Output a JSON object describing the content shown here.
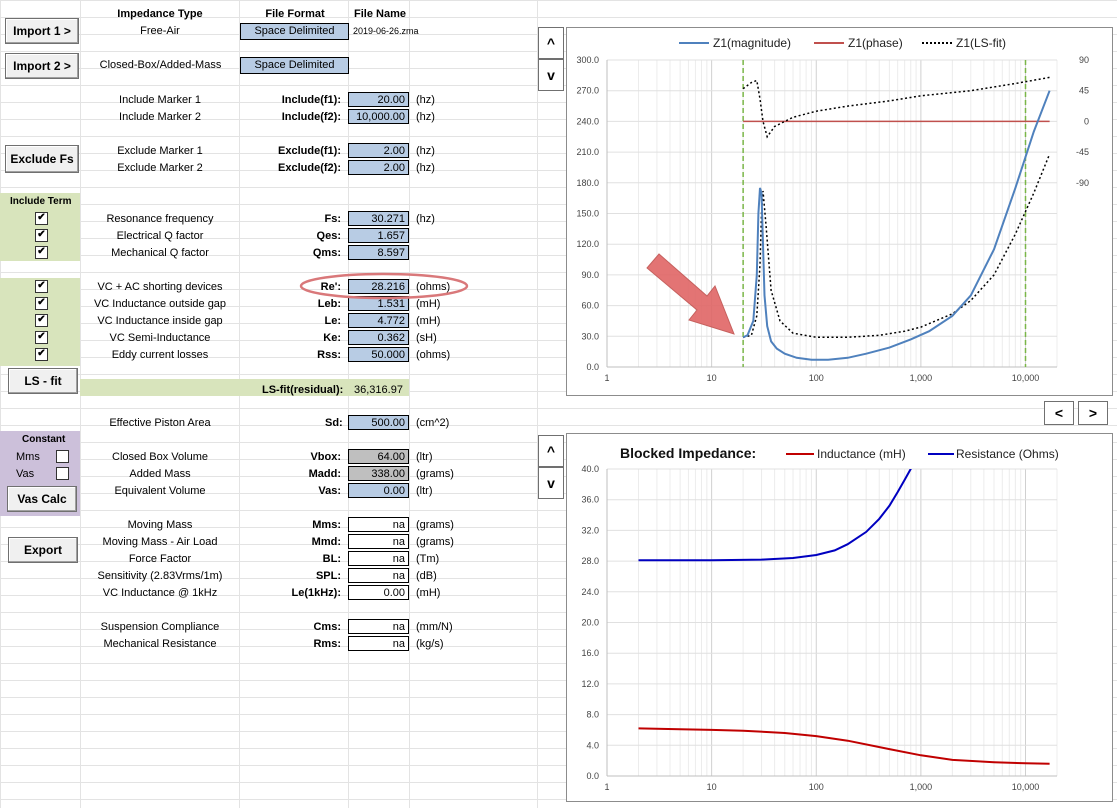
{
  "headers": {
    "impedance_type": "Impedance Type",
    "file_format": "File Format",
    "file_name": "File Name"
  },
  "buttons": {
    "import1": "Import 1 >",
    "import2": "Import 2 >",
    "exclude_fs": "Exclude Fs",
    "ls_fit": "LS - fit",
    "vas_calc": "Vas Calc",
    "export": "Export",
    "scroll_up": "^",
    "scroll_down": "v",
    "prev": "<",
    "next": ">"
  },
  "import1": {
    "type": "Free-Air",
    "format": "Space Delimited",
    "file": "2019-06-26.zma"
  },
  "import2": {
    "type": "Closed-Box/Added-Mass",
    "format": "Space Delimited"
  },
  "include_markers": [
    {
      "label": "Include Marker 1",
      "key": "Include(f1):",
      "value": "20.00",
      "unit": "(hz)"
    },
    {
      "label": "Include Marker 2",
      "key": "Include(f2):",
      "value": "10,000.00",
      "unit": "(hz)"
    }
  ],
  "exclude_markers": [
    {
      "label": "Exclude Marker 1",
      "key": "Exclude(f1):",
      "value": "2.00",
      "unit": "(hz)"
    },
    {
      "label": "Exclude Marker 2",
      "key": "Exclude(f2):",
      "value": "2.00",
      "unit": "(hz)"
    }
  ],
  "include_term_label": "Include Term",
  "params_a": [
    {
      "label": "Resonance frequency",
      "key": "Fs:",
      "value": "30.271",
      "unit": "(hz)",
      "checked": true
    },
    {
      "label": "Electrical Q factor",
      "key": "Qes:",
      "value": "1.657",
      "unit": "",
      "checked": true
    },
    {
      "label": "Mechanical Q factor",
      "key": "Qms:",
      "value": "8.597",
      "unit": "",
      "checked": true
    }
  ],
  "params_b": [
    {
      "label": "VC + AC shorting devices",
      "key": "Re':",
      "value": "28.216",
      "unit": "(ohms)",
      "checked": true
    },
    {
      "label": "VC Inductance outside gap",
      "key": "Leb:",
      "value": "1.531",
      "unit": "(mH)",
      "checked": true
    },
    {
      "label": "VC Inductance inside gap",
      "key": "Le:",
      "value": "4.772",
      "unit": "(mH)",
      "checked": true
    },
    {
      "label": "VC Semi-Inductance",
      "key": "Ke:",
      "value": "0.362",
      "unit": "(sH)",
      "checked": true
    },
    {
      "label": "Eddy current losses",
      "key": "Rss:",
      "value": "50.000",
      "unit": "(ohms)",
      "checked": true
    }
  ],
  "residual": {
    "key": "LS-fit(residual):",
    "value": "36,316.97"
  },
  "piston": {
    "label": "Effective Piston Area",
    "key": "Sd:",
    "value": "500.00",
    "unit": "(cm^2)"
  },
  "constant": {
    "title": "Constant",
    "mms": "Mms",
    "vas": "Vas"
  },
  "box_params": [
    {
      "label": "Closed Box Volume",
      "key": "Vbox:",
      "value": "64.00",
      "unit": "(ltr)",
      "style": "gray"
    },
    {
      "label": "Added Mass",
      "key": "Madd:",
      "value": "338.00",
      "unit": "(grams)",
      "style": "gray"
    },
    {
      "label": "Equivalent Volume",
      "key": "Vas:",
      "value": "0.00",
      "unit": "(ltr)",
      "style": "blue"
    }
  ],
  "derived_a": [
    {
      "label": "Moving Mass",
      "key": "Mms:",
      "value": "na",
      "unit": "(grams)"
    },
    {
      "label": "Moving Mass - Air Load",
      "key": "Mmd:",
      "value": "na",
      "unit": "(grams)"
    },
    {
      "label": "Force Factor",
      "key": "BL:",
      "value": "na",
      "unit": "(Tm)"
    },
    {
      "label": "Sensitivity (2.83Vrms/1m)",
      "key": "SPL:",
      "value": "na",
      "unit": "(dB)"
    },
    {
      "label": "VC Inductance @ 1kHz",
      "key": "Le(1kHz):",
      "value": "0.00",
      "unit": "(mH)"
    }
  ],
  "derived_b": [
    {
      "label": "Suspension Compliance",
      "key": "Cms:",
      "value": "na",
      "unit": "(mm/N)"
    },
    {
      "label": "Mechanical Resistance",
      "key": "Rms:",
      "value": "na",
      "unit": "(kg/s)"
    }
  ],
  "chart_data": [
    {
      "type": "line",
      "x_scale": "log",
      "xlim": [
        1,
        20000
      ],
      "ylim": [
        0,
        300
      ],
      "y2lim": [
        -90,
        90
      ],
      "x_ticks": [
        "1",
        "10",
        "100",
        "1,000",
        "10,000"
      ],
      "y_ticks": [
        "0.0",
        "30.0",
        "60.0",
        "90.0",
        "120.0",
        "150.0",
        "180.0",
        "210.0",
        "240.0",
        "270.0",
        "300.0"
      ],
      "y2_ticks": [
        "-90",
        "-45",
        "0",
        "45",
        "90"
      ],
      "legend_position": "top",
      "markers_x": [
        20,
        10000
      ],
      "series": [
        {
          "name": "Z1(magnitude)",
          "color": "#4f81bd",
          "x": [
            20,
            22,
            25,
            27,
            28,
            29,
            30,
            31,
            32,
            34,
            37,
            42,
            50,
            65,
            90,
            130,
            200,
            300,
            500,
            800,
            1200,
            2000,
            3000,
            5000,
            8000,
            12000,
            17000
          ],
          "y": [
            29,
            31,
            45,
            90,
            150,
            175,
            170,
            120,
            70,
            40,
            25,
            18,
            13,
            9,
            7,
            7,
            9,
            13,
            19,
            27,
            35,
            50,
            70,
            115,
            175,
            230,
            270
          ]
        },
        {
          "name": "Z1(phase)",
          "color": "#c0504d",
          "x": [
            20,
            17000
          ],
          "y": [
            0,
            0
          ]
        },
        {
          "name": "Z1(LS-fit)",
          "color": "#000000",
          "x": [
            20,
            24,
            27,
            29,
            30,
            31,
            33,
            37,
            45,
            60,
            100,
            200,
            400,
            700,
            1000,
            2000,
            3000,
            5000,
            8000,
            12000,
            17000
          ],
          "y": [
            29,
            31,
            50,
            100,
            150,
            172,
            140,
            75,
            45,
            33,
            29,
            29,
            31,
            35,
            39,
            52,
            65,
            90,
            130,
            170,
            208
          ]
        }
      ],
      "annotation": "red arrow pointing at 20 Hz",
      "highlight": "Re' value circled in red"
    },
    {
      "type": "line",
      "title": "Blocked Impedance:",
      "x_scale": "log",
      "xlim": [
        1,
        20000
      ],
      "ylim": [
        0,
        40
      ],
      "x_ticks": [
        "1",
        "10",
        "100",
        "1,000",
        "10,000"
      ],
      "y_ticks": [
        "0.0",
        "4.0",
        "8.0",
        "12.0",
        "16.0",
        "20.0",
        "24.0",
        "28.0",
        "32.0",
        "36.0",
        "40.0"
      ],
      "legend_position": "top",
      "series": [
        {
          "name": "Inductance (mH)",
          "color": "#c00000",
          "x": [
            2,
            5,
            10,
            20,
            50,
            100,
            200,
            500,
            1000,
            2000,
            5000,
            10000,
            17000
          ],
          "y": [
            6.2,
            6.1,
            6.0,
            5.9,
            5.6,
            5.2,
            4.6,
            3.5,
            2.7,
            2.1,
            1.8,
            1.65,
            1.6
          ]
        },
        {
          "name": "Resistance (Ohms)",
          "color": "#0000c0",
          "x": [
            2,
            10,
            30,
            60,
            100,
            150,
            200,
            300,
            400,
            500,
            600,
            700,
            800,
            900
          ],
          "y": [
            28.1,
            28.1,
            28.2,
            28.4,
            28.8,
            29.4,
            30.2,
            31.8,
            33.5,
            35.2,
            37.0,
            38.6,
            40.0,
            41.2
          ]
        }
      ]
    }
  ]
}
